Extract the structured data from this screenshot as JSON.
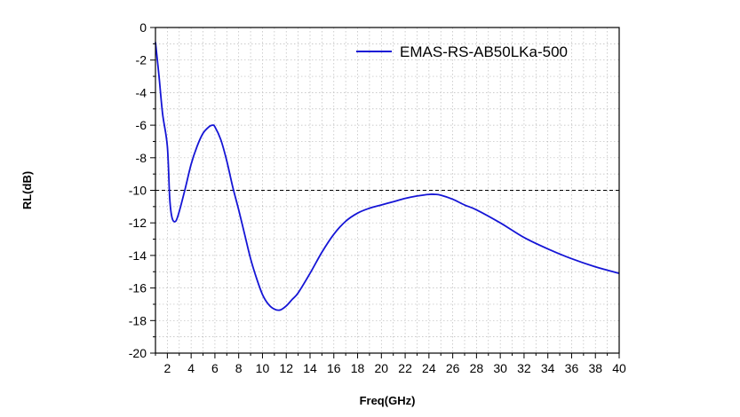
{
  "chart_data": {
    "type": "line",
    "title": "",
    "xlabel": "Freq(GHz)",
    "ylabel": "RL(dB)",
    "xlim": [
      1,
      40
    ],
    "ylim": [
      -20,
      0
    ],
    "x_ticks": [
      2,
      4,
      6,
      8,
      10,
      12,
      14,
      16,
      18,
      20,
      22,
      24,
      26,
      28,
      30,
      32,
      34,
      36,
      38,
      40
    ],
    "y_ticks": [
      0,
      -2,
      -4,
      -6,
      -8,
      -10,
      -12,
      -14,
      -16,
      -18,
      -20
    ],
    "grid": true,
    "legend_position": "top-right",
    "reference_line": {
      "y": -10,
      "style": "dashed",
      "color": "#000000"
    },
    "series": [
      {
        "name": "EMAS-RS-AB50LKa-500",
        "color": "#1515d6",
        "x": [
          1.0,
          1.3,
          1.6,
          2.0,
          2.2,
          2.4,
          2.7,
          3.0,
          3.5,
          4.0,
          4.5,
          5.0,
          5.5,
          5.8,
          6.0,
          6.5,
          7.0,
          7.5,
          8.0,
          8.5,
          9.0,
          9.5,
          10.0,
          10.5,
          11.0,
          11.5,
          12.0,
          12.5,
          13.0,
          14.0,
          15.0,
          16.0,
          17.0,
          18.0,
          19.0,
          20.0,
          21.0,
          22.0,
          23.0,
          24.0,
          24.5,
          25.0,
          26.0,
          27.0,
          28.0,
          30.0,
          32.0,
          34.0,
          36.0,
          38.0,
          40.0
        ],
        "y": [
          -0.9,
          -3.0,
          -5.3,
          -7.3,
          -10.5,
          -11.7,
          -11.9,
          -11.3,
          -9.9,
          -8.4,
          -7.3,
          -6.5,
          -6.1,
          -6.0,
          -6.1,
          -6.9,
          -8.2,
          -9.8,
          -11.2,
          -12.7,
          -14.2,
          -15.4,
          -16.4,
          -17.0,
          -17.3,
          -17.35,
          -17.1,
          -16.7,
          -16.3,
          -15.1,
          -13.8,
          -12.7,
          -11.9,
          -11.4,
          -11.1,
          -10.9,
          -10.7,
          -10.5,
          -10.35,
          -10.25,
          -10.25,
          -10.3,
          -10.55,
          -10.9,
          -11.2,
          -12.0,
          -12.9,
          -13.6,
          -14.2,
          -14.7,
          -15.1
        ]
      }
    ]
  }
}
